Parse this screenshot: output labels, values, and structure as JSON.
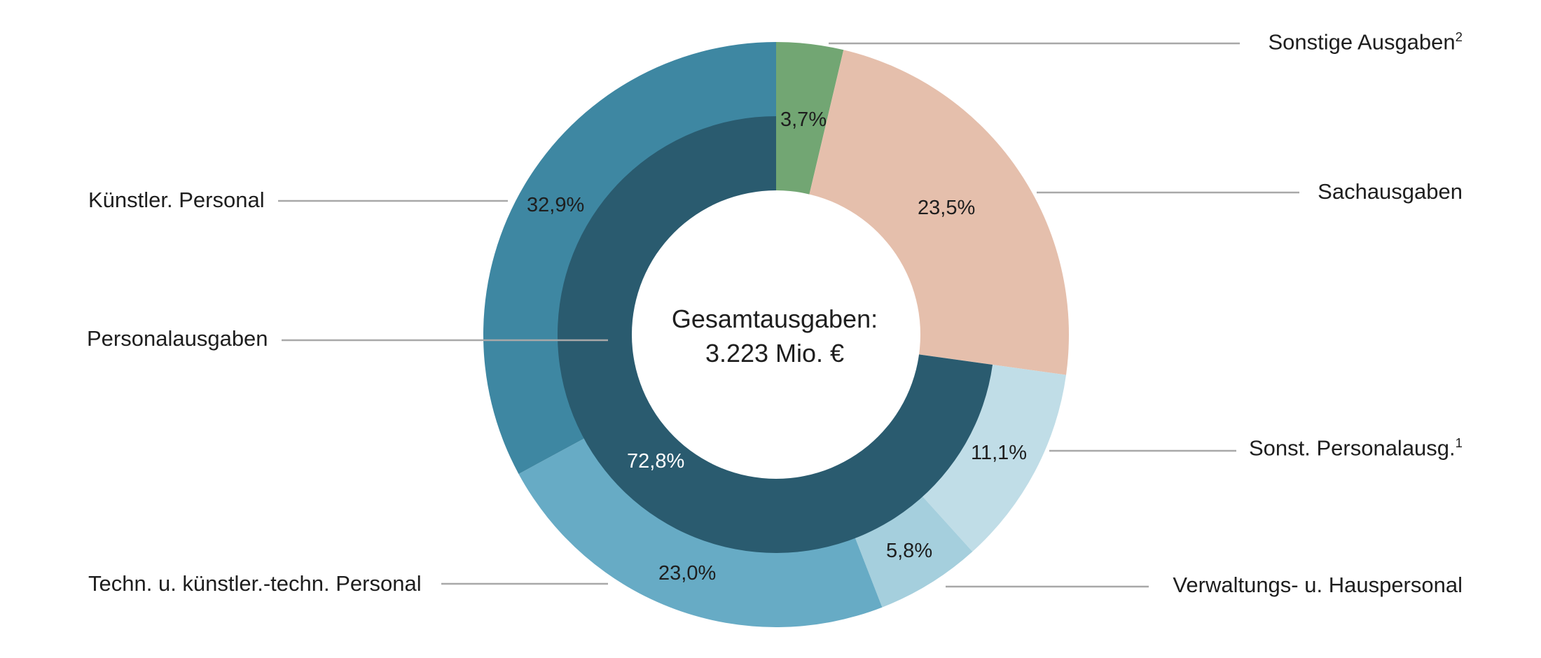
{
  "chart_data": {
    "type": "donut",
    "center_label": {
      "line1": "Gesamtausgaben:",
      "line2": "3.223 Mio. €"
    },
    "outer_ring": [
      {
        "name": "Sonstige Ausgaben",
        "note": "2",
        "value": 3.7,
        "value_label": "3,7%",
        "color": "#72a673"
      },
      {
        "name": "Sachausgaben",
        "value": 23.5,
        "value_label": "23,5%",
        "color": "#e5bfac"
      },
      {
        "name": "Sonst. Personalausg.",
        "note": "1",
        "value": 11.1,
        "value_label": "11,1%",
        "color": "#c0dde7"
      },
      {
        "name": "Verwaltungs- u. Hauspersonal",
        "value": 5.8,
        "value_label": "5,8%",
        "color": "#a5cfdd"
      },
      {
        "name": "Techn. u. künstler.-techn. Personal",
        "value": 23.0,
        "value_label": "23,0%",
        "color": "#67abc5"
      },
      {
        "name": "Künstler. Personal",
        "value": 32.9,
        "value_label": "32,9%",
        "color": "#3e87a2"
      }
    ],
    "inner_ring": [
      {
        "name": "",
        "value": 3.7,
        "color": "transparent"
      },
      {
        "name": "",
        "value": 23.5,
        "color": "transparent"
      },
      {
        "name": "Personalausgaben",
        "value": 72.8,
        "value_label": "72,8%",
        "color": "#2a5b6f"
      }
    ]
  }
}
